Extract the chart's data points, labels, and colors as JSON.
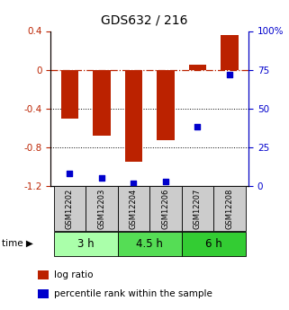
{
  "title": "GDS632 / 216",
  "samples": [
    "GSM12202",
    "GSM12203",
    "GSM12204",
    "GSM12206",
    "GSM12207",
    "GSM12208"
  ],
  "log_ratio": [
    -0.5,
    -0.68,
    -0.95,
    -0.73,
    0.05,
    0.36
  ],
  "percentile_rank": [
    8,
    5,
    2,
    3,
    38,
    72
  ],
  "bar_color": "#bb2200",
  "dot_color": "#0000cc",
  "ylim_left": [
    -1.2,
    0.4
  ],
  "ylim_right": [
    0,
    100
  ],
  "yticks_left": [
    0.4,
    0.0,
    -0.4,
    -0.8,
    -1.2
  ],
  "yticks_right": [
    100,
    75,
    50,
    25,
    0
  ],
  "ytick_labels_left": [
    "0.4",
    "0",
    "-0.4",
    "-0.8",
    "-1.2"
  ],
  "ytick_labels_right": [
    "100%",
    "75",
    "50",
    "25",
    "0"
  ],
  "groups": [
    {
      "label": "3 h",
      "color": "#aaffaa",
      "start": 0,
      "end": 2
    },
    {
      "label": "4.5 h",
      "color": "#55dd55",
      "start": 2,
      "end": 4
    },
    {
      "label": "6 h",
      "color": "#33cc33",
      "start": 4,
      "end": 6
    }
  ],
  "legend_bar_label": "log ratio",
  "legend_dot_label": "percentile rank within the sample",
  "bar_color_legend": "#bb2200",
  "dot_color_legend": "#0000cc",
  "bar_width": 0.55
}
